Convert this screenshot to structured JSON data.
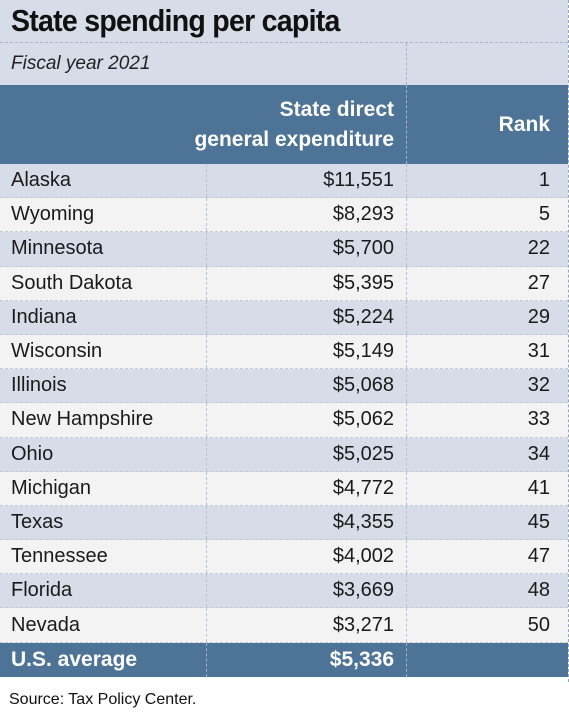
{
  "title": "State spending per capita",
  "subtitle": "Fiscal year 2021",
  "header": {
    "expenditure_line1": "State direct",
    "expenditure_line2": "general expenditure",
    "rank": "Rank"
  },
  "rows": [
    {
      "state": "Alaska",
      "expenditure": "$11,551",
      "rank": "1"
    },
    {
      "state": "Wyoming",
      "expenditure": "$8,293",
      "rank": "5"
    },
    {
      "state": "Minnesota",
      "expenditure": "$5,700",
      "rank": "22"
    },
    {
      "state": "South Dakota",
      "expenditure": "$5,395",
      "rank": "27"
    },
    {
      "state": "Indiana",
      "expenditure": "$5,224",
      "rank": "29"
    },
    {
      "state": "Wisconsin",
      "expenditure": "$5,149",
      "rank": "31"
    },
    {
      "state": "Illinois",
      "expenditure": "$5,068",
      "rank": "32"
    },
    {
      "state": "New Hampshire",
      "expenditure": "$5,062",
      "rank": "33"
    },
    {
      "state": "Ohio",
      "expenditure": "$5,025",
      "rank": "34"
    },
    {
      "state": "Michigan",
      "expenditure": "$4,772",
      "rank": "41"
    },
    {
      "state": "Texas",
      "expenditure": "$4,355",
      "rank": "45"
    },
    {
      "state": "Tennessee",
      "expenditure": "$4,002",
      "rank": "47"
    },
    {
      "state": "Florida",
      "expenditure": "$3,669",
      "rank": "48"
    },
    {
      "state": "Nevada",
      "expenditure": "$3,271",
      "rank": "50"
    }
  ],
  "average": {
    "label": "U.S. average",
    "expenditure": "$5,336"
  },
  "source": "Source: Tax Policy Center.",
  "colors": {
    "header_blue": "#4d7396",
    "band_blue": "#d6dde8",
    "band_gray": "#f3f3f3"
  }
}
